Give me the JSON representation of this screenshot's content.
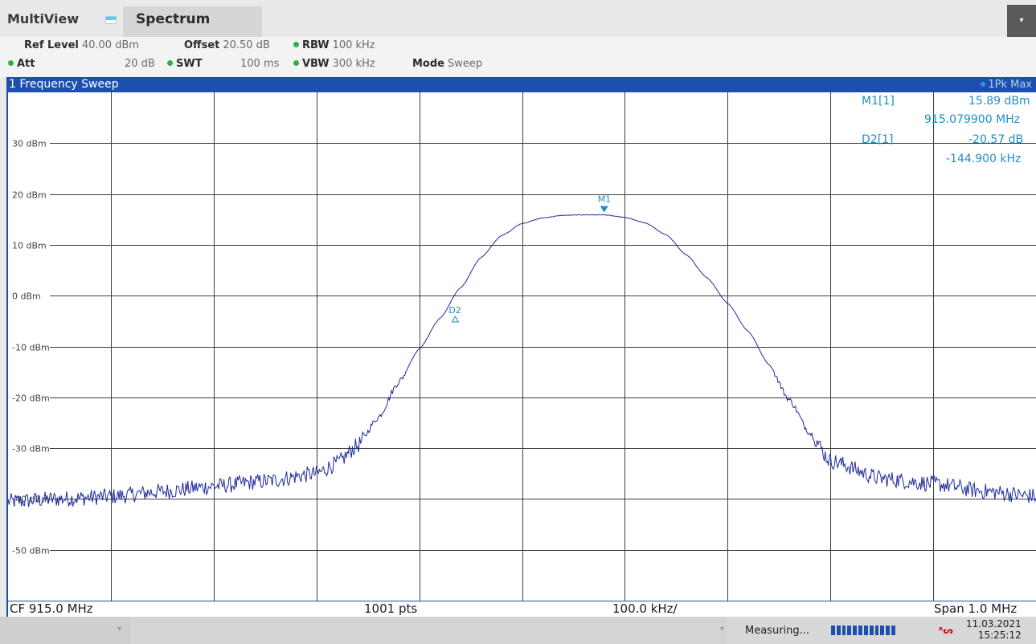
{
  "topbar": {
    "app_title": "MultiView",
    "tab_label": "Spectrum",
    "menu_icon": "caret-down-icon",
    "menu_glyph": "▾"
  },
  "settings": {
    "ref_level": {
      "label": "Ref Level",
      "value": "40.00 dBm"
    },
    "offset": {
      "label": "Offset",
      "value": "20.50 dB"
    },
    "rbw": {
      "label": "RBW",
      "value": "100 kHz"
    },
    "att": {
      "label": "Att",
      "value": "20 dB"
    },
    "swt": {
      "label": "SWT",
      "value": "100 ms"
    },
    "vbw": {
      "label": "VBW",
      "value": "300 kHz"
    },
    "mode": {
      "label": "Mode",
      "value": "Sweep"
    },
    "dot_color": "#28b44a"
  },
  "window": {
    "title": "1 Frequency Sweep",
    "trace_label": "1Pk Max"
  },
  "markers": {
    "m1_name": "M1[1]",
    "m1_level": "15.89 dBm",
    "m1_freq": "915.079900 MHz",
    "d2_name": "D2[1]",
    "d2_level": "-20.57 dB",
    "d2_freq": "-144.900 kHz",
    "m1_plot_label": "M1",
    "d2_plot_label": "D2"
  },
  "chart_data": {
    "type": "line",
    "xlabel": "",
    "ylabel": "",
    "xlim": [
      914.5,
      915.5
    ],
    "ylim": [
      -60,
      40
    ],
    "y_ticks": [
      30,
      20,
      10,
      0,
      -10,
      -20,
      -30,
      -40,
      -50
    ],
    "y_tick_labels": [
      "30 dBm",
      "20 dBm",
      "10 dBm",
      "0 dBm",
      "-10 dBm",
      "-20 dBm",
      "-30 dBm",
      "-40 dBm",
      "-50 dBm"
    ],
    "grid": true,
    "trace_color": "#1f2a9a",
    "series": [
      {
        "x": [
          914.5,
          914.55,
          914.6,
          914.65,
          914.7,
          914.75,
          914.8,
          914.82,
          914.84,
          914.86,
          914.88,
          914.9,
          914.92,
          914.94,
          914.96,
          914.98,
          915.0,
          915.02,
          915.04,
          915.06,
          915.08,
          915.1,
          915.12,
          915.14,
          915.16,
          915.18,
          915.2,
          915.22,
          915.24,
          915.26,
          915.28,
          915.3,
          915.35,
          915.4,
          915.45,
          915.5
        ],
        "y": [
          -40.5,
          -40,
          -39.5,
          -38.5,
          -37.5,
          -36.5,
          -35,
          -33,
          -29.5,
          -24,
          -17,
          -10.5,
          -4.5,
          1.5,
          7.5,
          11.8,
          14.2,
          15.3,
          15.8,
          15.9,
          15.9,
          15.4,
          14.3,
          12,
          8,
          3.5,
          -1.5,
          -7,
          -13.5,
          -20.5,
          -27,
          -32.5,
          -36,
          -37,
          -38.5,
          -39.5
        ]
      }
    ],
    "markers": [
      {
        "label": "M1",
        "x": 915.0799,
        "y": 15.89
      },
      {
        "label": "D2",
        "x": 914.935,
        "y": -4.7
      }
    ]
  },
  "info_bar": {
    "cf": "CF 915.0 MHz",
    "pts": "1001 pts",
    "div": "100.0 kHz/",
    "span": "Span 1.0 MHz"
  },
  "status_bar": {
    "measuring": "Measuring...",
    "logo": "ᴿᔕ",
    "date": "11.03.2021",
    "time": "15:25:12"
  }
}
